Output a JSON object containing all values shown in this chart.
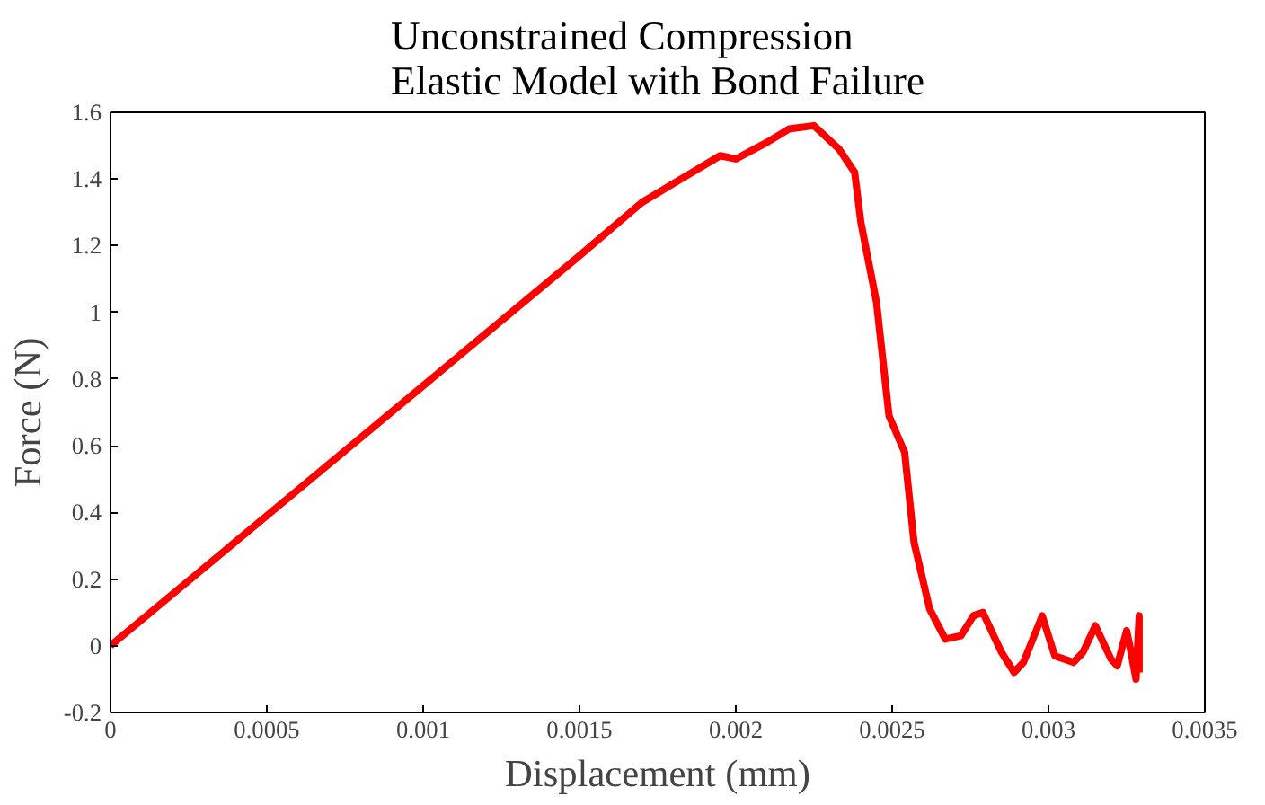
{
  "chart_data": {
    "type": "line",
    "title": "Unconstrained Compression\nElastic Model with Bond Failure",
    "xlabel": "Displacement (mm)",
    "ylabel": "Force (N)",
    "x": [
      0,
      0.0005,
      0.001,
      0.0015,
      0.0017,
      0.00195,
      0.002,
      0.0021,
      0.00217,
      0.00225,
      0.00233,
      0.00238,
      0.0024,
      0.00245,
      0.00249,
      0.00254,
      0.00257,
      0.00262,
      0.00267,
      0.00272,
      0.00276,
      0.00279,
      0.00285,
      0.00289,
      0.00292,
      0.00298,
      0.00302,
      0.00308,
      0.00311,
      0.00315,
      0.0032,
      0.00322,
      0.00325,
      0.00326,
      0.00328,
      0.00329,
      0.00329
    ],
    "series": [
      {
        "color": "#ff0000",
        "values": [
          0,
          0.39,
          0.78,
          1.17,
          1.33,
          1.47,
          1.46,
          1.51,
          1.55,
          1.56,
          1.49,
          1.42,
          1.27,
          1.03,
          0.69,
          0.58,
          0.31,
          0.11,
          0.02,
          0.03,
          0.09,
          0.1,
          -0.02,
          -0.08,
          -0.05,
          0.09,
          -0.03,
          -0.05,
          -0.02,
          0.06,
          -0.04,
          -0.06,
          0.045,
          0,
          -0.1,
          0.09,
          -0.08
        ]
      }
    ],
    "xlim": [
      0,
      0.0035
    ],
    "ylim": [
      -0.2,
      1.6
    ],
    "xticks": [
      0,
      0.0005,
      0.001,
      0.0015,
      0.002,
      0.0025,
      0.003,
      0.0035
    ],
    "yticks": [
      -0.2,
      0,
      0.2,
      0.4,
      0.6,
      0.8,
      1,
      1.2,
      1.4,
      1.6
    ],
    "grid": false,
    "marker": "none",
    "line_style": "solid"
  }
}
